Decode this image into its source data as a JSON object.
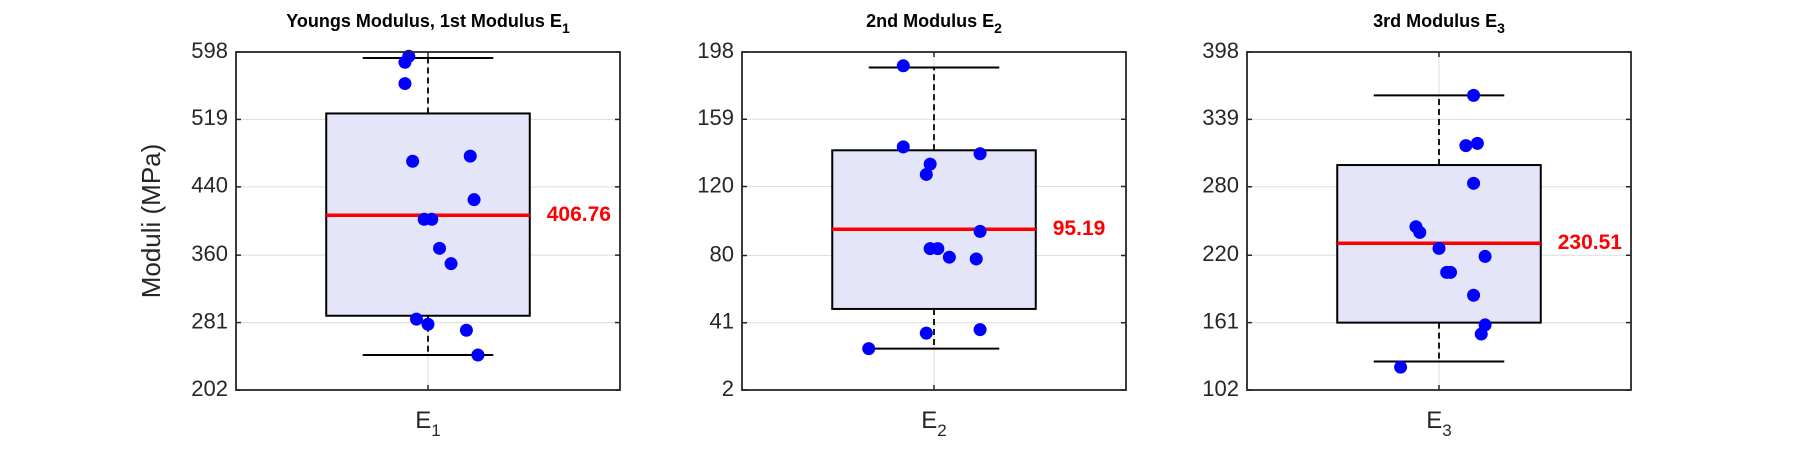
{
  "chart_data": [
    {
      "type": "box",
      "title": "Youngs Modulus, 1st Modulus E",
      "title_subscript": "1",
      "ylabel": "Moduli (MPa)",
      "ylim": [
        202,
        598
      ],
      "yticks": [
        202,
        281,
        360,
        440,
        519,
        598
      ],
      "ytick_labels": [
        "202",
        "281",
        "360",
        "440",
        "519",
        "598"
      ],
      "category": "E",
      "category_subscript": "1",
      "box": {
        "whisker_low": 243,
        "q1": 289,
        "median": 406.76,
        "q3": 526,
        "whisker_high": 591
      },
      "median_label": "406.76",
      "points": [
        {
          "x": 0.95,
          "y": 593
        },
        {
          "x": 0.94,
          "y": 586
        },
        {
          "x": 0.94,
          "y": 561
        },
        {
          "x": 0.96,
          "y": 470
        },
        {
          "x": 1.11,
          "y": 476
        },
        {
          "x": 1.12,
          "y": 425
        },
        {
          "x": 0.99,
          "y": 402
        },
        {
          "x": 1.01,
          "y": 402
        },
        {
          "x": 1.03,
          "y": 368
        },
        {
          "x": 1.06,
          "y": 350
        },
        {
          "x": 0.97,
          "y": 285
        },
        {
          "x": 1.0,
          "y": 279
        },
        {
          "x": 1.1,
          "y": 272
        },
        {
          "x": 1.13,
          "y": 243
        }
      ]
    },
    {
      "type": "box",
      "title": "2nd Modulus E",
      "title_subscript": "2",
      "ylabel": "",
      "ylim": [
        2,
        198
      ],
      "yticks": [
        2,
        41,
        80,
        120,
        159,
        198
      ],
      "ytick_labels": [
        "2",
        "41",
        "80",
        "120",
        "159",
        "198"
      ],
      "category": "E",
      "category_subscript": "2",
      "box": {
        "whisker_low": 26,
        "q1": 49,
        "median": 95.19,
        "q3": 141,
        "whisker_high": 189
      },
      "median_label": "95.19",
      "points": [
        {
          "x": 0.92,
          "y": 190
        },
        {
          "x": 0.92,
          "y": 143
        },
        {
          "x": 1.12,
          "y": 139
        },
        {
          "x": 0.99,
          "y": 133
        },
        {
          "x": 0.98,
          "y": 127
        },
        {
          "x": 1.12,
          "y": 94
        },
        {
          "x": 0.99,
          "y": 84
        },
        {
          "x": 1.01,
          "y": 84
        },
        {
          "x": 1.04,
          "y": 79
        },
        {
          "x": 1.11,
          "y": 78
        },
        {
          "x": 0.98,
          "y": 35
        },
        {
          "x": 1.12,
          "y": 37
        },
        {
          "x": 0.83,
          "y": 26
        }
      ]
    },
    {
      "type": "box",
      "title": "3rd Modulus E",
      "title_subscript": "3",
      "ylabel": "",
      "ylim": [
        102,
        398
      ],
      "yticks": [
        102,
        161,
        220,
        280,
        339,
        398
      ],
      "ytick_labels": [
        "102",
        "161",
        "220",
        "280",
        "339",
        "398"
      ],
      "category": "E",
      "category_subscript": "3",
      "box": {
        "whisker_low": 127,
        "q1": 161,
        "median": 230.51,
        "q3": 299,
        "whisker_high": 360
      },
      "median_label": "230.51",
      "points": [
        {
          "x": 1.09,
          "y": 360
        },
        {
          "x": 1.07,
          "y": 316
        },
        {
          "x": 1.1,
          "y": 318
        },
        {
          "x": 1.09,
          "y": 283
        },
        {
          "x": 0.94,
          "y": 245
        },
        {
          "x": 0.95,
          "y": 240
        },
        {
          "x": 1.0,
          "y": 226
        },
        {
          "x": 1.12,
          "y": 219
        },
        {
          "x": 1.02,
          "y": 205
        },
        {
          "x": 1.03,
          "y": 205
        },
        {
          "x": 1.09,
          "y": 185
        },
        {
          "x": 1.12,
          "y": 159
        },
        {
          "x": 1.11,
          "y": 151
        },
        {
          "x": 0.9,
          "y": 122
        }
      ]
    }
  ],
  "colors": {
    "box_fill": "#e5e5fa",
    "box_edge": "#000000",
    "median": "#ff0000",
    "median_label": "#ff0000",
    "point": "#0000ff",
    "grid": "#dedede",
    "axis": "#262626",
    "whisker": "#000000"
  }
}
